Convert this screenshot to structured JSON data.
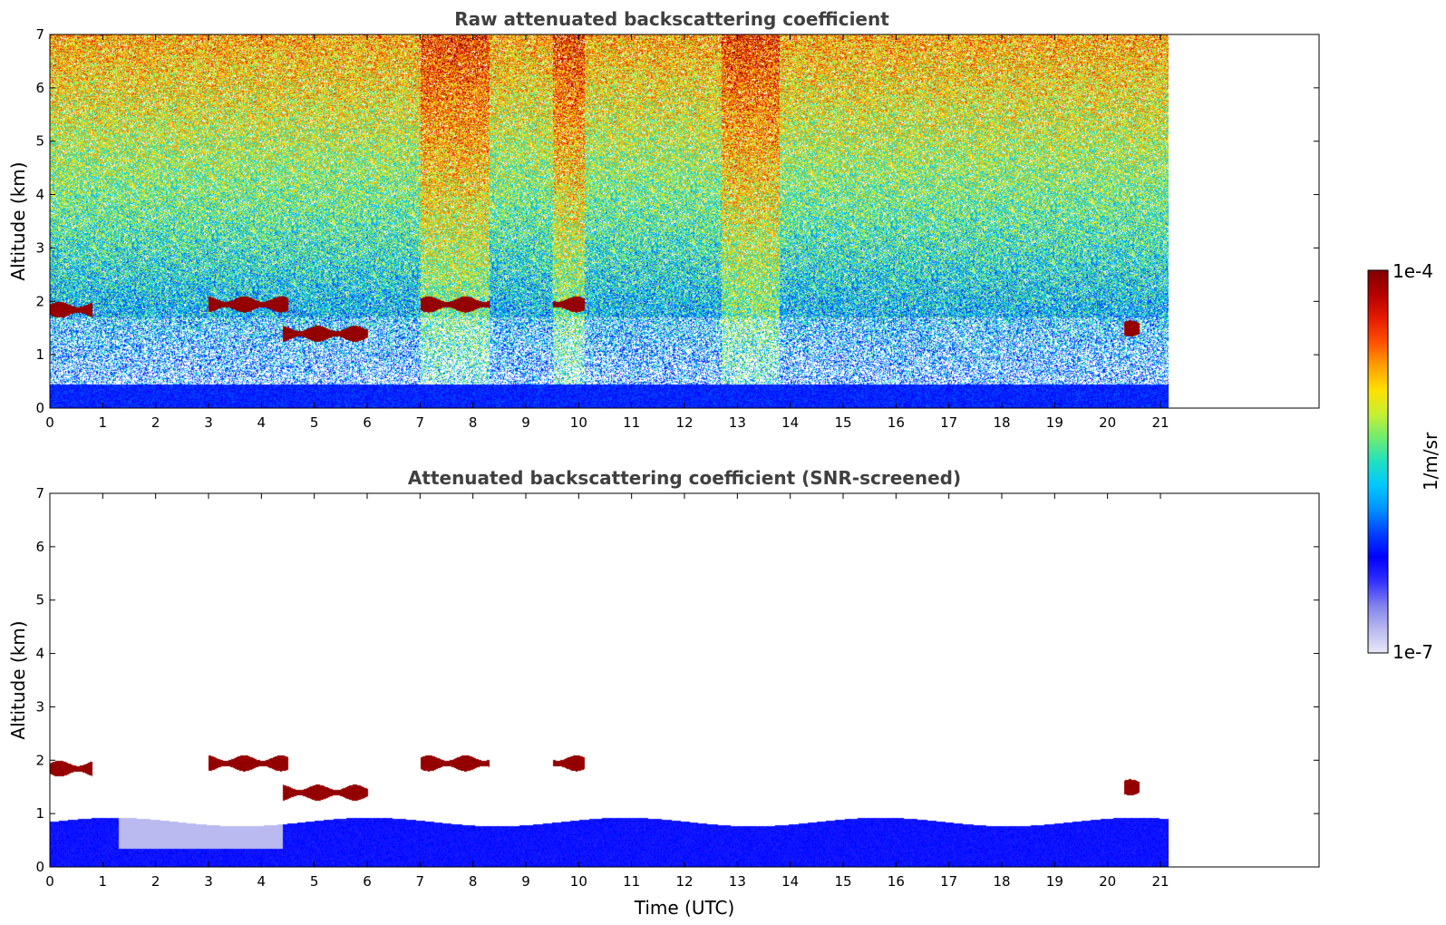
{
  "colors": {
    "title": "#404040",
    "colormap": [
      "#e8e8f8",
      "#b8b8f0",
      "#8080ee",
      "#3030ff",
      "#0000ff",
      "#0040ff",
      "#0090ff",
      "#00c8ff",
      "#20e0c0",
      "#70ec70",
      "#c8f030",
      "#ffe000",
      "#ffa000",
      "#ff5000",
      "#e41a00",
      "#b40000",
      "#800000"
    ]
  },
  "chart_data": [
    {
      "type": "heatmap",
      "title": "Raw attenuated backscattering coefficient",
      "xlabel": "",
      "ylabel": "Altitude (km)",
      "xlim": [
        0,
        24
      ],
      "ylim": [
        0,
        7
      ],
      "x_ticks": [
        "0",
        "1",
        "2",
        "3",
        "4",
        "5",
        "6",
        "7",
        "8",
        "9",
        "10",
        "11",
        "12",
        "13",
        "14",
        "15",
        "16",
        "17",
        "18",
        "19",
        "20",
        "21"
      ],
      "y_ticks": [
        "0",
        "1",
        "2",
        "3",
        "4",
        "5",
        "6",
        "7"
      ],
      "data_end_time": 21.15,
      "boundary_layer_top_km": 0.45,
      "cloud_layers": [
        {
          "t_start": 0.0,
          "t_end": 0.8,
          "alt_km": 1.85
        },
        {
          "t_start": 3.0,
          "t_end": 4.5,
          "alt_km": 1.95
        },
        {
          "t_start": 4.4,
          "t_end": 6.0,
          "alt_km": 1.4
        },
        {
          "t_start": 7.0,
          "t_end": 8.3,
          "alt_km": 1.95
        },
        {
          "t_start": 9.5,
          "t_end": 10.1,
          "alt_km": 1.95
        },
        {
          "t_start": 20.3,
          "t_end": 20.6,
          "alt_km": 1.5
        }
      ]
    },
    {
      "type": "heatmap",
      "title": "Attenuated backscattering coefficient (SNR-screened)",
      "xlabel": "Time (UTC)",
      "ylabel": "Altitude (km)",
      "xlim": [
        0,
        24
      ],
      "ylim": [
        0,
        7
      ],
      "x_ticks": [
        "0",
        "1",
        "2",
        "3",
        "4",
        "5",
        "6",
        "7",
        "8",
        "9",
        "10",
        "11",
        "12",
        "13",
        "14",
        "15",
        "16",
        "17",
        "18",
        "19",
        "20",
        "21"
      ],
      "y_ticks": [
        "0",
        "1",
        "2",
        "3",
        "4",
        "5",
        "6",
        "7"
      ],
      "data_end_time": 21.15,
      "boundary_layer_top_km": 0.85
    }
  ],
  "colorbar": {
    "label": "1/m/sr",
    "max_label": "1e-4",
    "min_label": "1e-7",
    "scale": "log",
    "range": [
      1e-07,
      0.0001
    ]
  }
}
